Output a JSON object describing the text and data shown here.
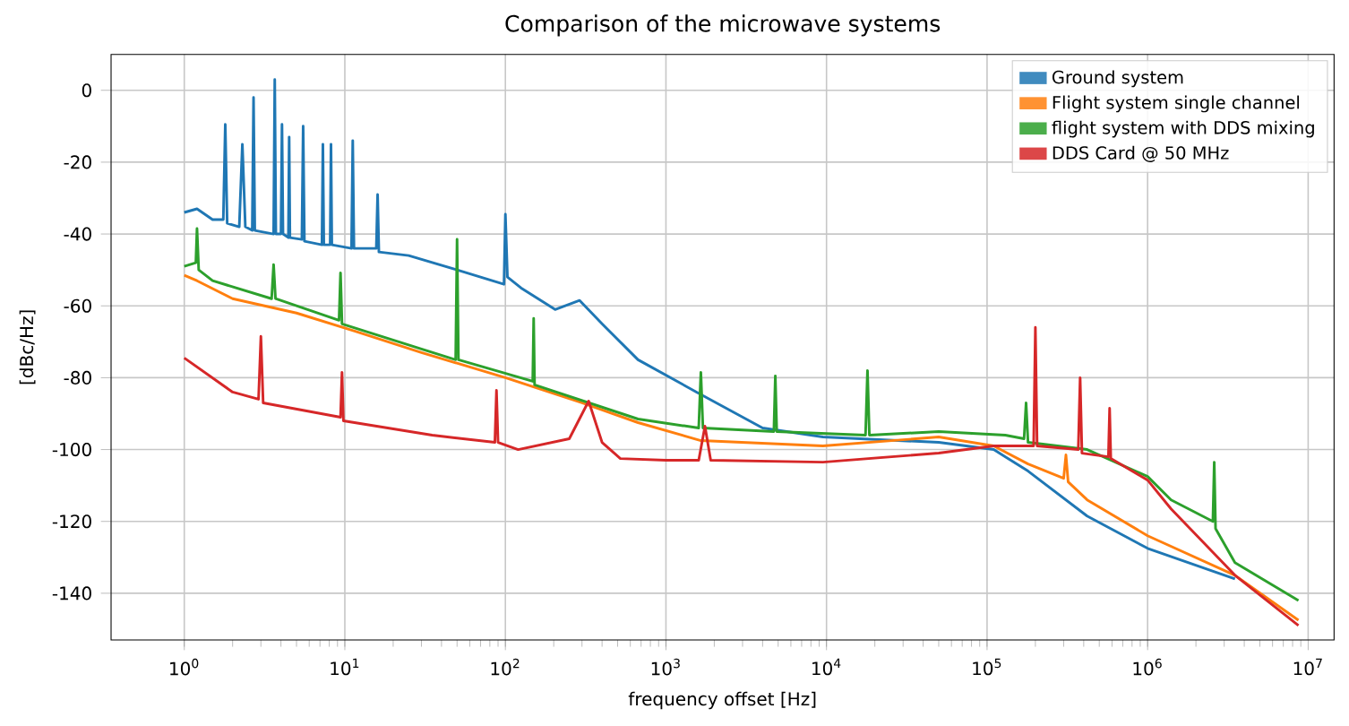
{
  "chart_data": {
    "type": "line",
    "title": "Comparison of the microwave systems",
    "xlabel": "frequency offset [Hz]",
    "ylabel": "[dBc/Hz]",
    "log": "x",
    "grid": true,
    "legend": "top right",
    "marker": "none",
    "line_style": "solid",
    "xlim": [
      0.35,
      14500000
    ],
    "ylim": [
      -153,
      10
    ],
    "xticks": [
      {
        "value": 1,
        "label": "10$^{0}$"
      },
      {
        "value": 10,
        "label": "10$^{1}$"
      },
      {
        "value": 100,
        "label": "10$^{2}$"
      },
      {
        "value": 1000,
        "label": "10$^{3}$"
      },
      {
        "value": 10000,
        "label": "10$^{4}$"
      },
      {
        "value": 100000,
        "label": "10$^{5}$"
      },
      {
        "value": 1000000,
        "label": "10$^{6}$"
      },
      {
        "value": 10000000,
        "label": "10$^{7}$"
      }
    ],
    "yticks": [
      -140,
      -120,
      -100,
      -80,
      -60,
      -40,
      -20,
      0
    ],
    "series": [
      {
        "name": "Ground system",
        "color": "#1f77b4",
        "x": [
          1,
          1.2,
          1.5,
          1.75,
          1.8,
          1.85,
          2.2,
          2.3,
          2.4,
          2.65,
          2.7,
          2.75,
          3.6,
          3.66,
          3.72,
          4.0,
          4.06,
          4.12,
          4.45,
          4.5,
          4.55,
          5.4,
          5.5,
          5.6,
          7.2,
          7.3,
          7.4,
          8.1,
          8.2,
          8.3,
          11,
          11.2,
          11.4,
          15.7,
          16,
          16.3,
          25,
          50,
          98,
          100,
          103,
          125,
          204,
          290,
          400,
          670,
          1550,
          4000,
          9500,
          50000,
          110000,
          180000,
          420000,
          1000000,
          3500000
        ],
        "values": [
          -34,
          -33,
          -36,
          -36,
          -9.5,
          -37,
          -38,
          -15,
          -38,
          -39,
          -2,
          -39,
          -40,
          3,
          -40,
          -40,
          -9.5,
          -40,
          -41,
          -13,
          -41,
          -41.5,
          -10,
          -42,
          -43,
          -15,
          -43,
          -43,
          -15,
          -43,
          -44,
          -14,
          -44,
          -44,
          -29,
          -45,
          -46,
          -50,
          -54,
          -34.5,
          -52,
          -55,
          -61,
          -58.5,
          -65,
          -75,
          -84,
          -94,
          -96.5,
          -98,
          -100,
          -106,
          -118.5,
          -127.5,
          -136
        ]
      },
      {
        "name": "Flight system single channel",
        "color": "#ff7f0e",
        "x": [
          1,
          1.2,
          2,
          5,
          11.5,
          30,
          100,
          300,
          670,
          1650,
          9500,
          50000,
          110000,
          180000,
          300000,
          310000,
          320000,
          420000,
          1000000,
          3500000,
          8700000
        ],
        "values": [
          -51.5,
          -53,
          -58,
          -62,
          -67,
          -73,
          -80,
          -87,
          -92.5,
          -97.5,
          -99,
          -96.5,
          -99,
          -104,
          -108,
          -101.5,
          -109,
          -114,
          -124,
          -135,
          -147.5
        ]
      },
      {
        "name": "flight system with DDS mixing",
        "color": "#2ca02c",
        "x": [
          1,
          1.18,
          1.2,
          1.23,
          1.5,
          3.5,
          3.6,
          3.7,
          9.2,
          9.4,
          9.6,
          30,
          49,
          50,
          51,
          148,
          150,
          152,
          670,
          1600,
          1650,
          1700,
          4700,
          4800,
          4900,
          17500,
          18000,
          18500,
          50000,
          130000,
          170000,
          175000,
          180000,
          420000,
          1000000,
          1400000,
          2550000,
          2600000,
          2650000,
          3500000,
          8700000
        ],
        "values": [
          -49,
          -48,
          -38.5,
          -50,
          -53,
          -58,
          -48.5,
          -58,
          -64,
          -50.8,
          -65,
          -72,
          -75,
          -41.5,
          -75,
          -81,
          -63.5,
          -82,
          -91.5,
          -94,
          -78.5,
          -94,
          -95,
          -79.5,
          -95,
          -96,
          -78,
          -96,
          -95,
          -96,
          -97,
          -87,
          -98,
          -100,
          -107.5,
          -114,
          -120,
          -103.5,
          -122,
          -131.5,
          -142
        ]
      },
      {
        "name": "DDS Card @ 50 MHz",
        "color": "#d62728",
        "x": [
          1,
          2,
          2.9,
          3,
          3.1,
          9.4,
          9.6,
          9.8,
          35,
          86,
          88,
          90,
          120,
          250,
          330,
          400,
          520,
          1000,
          1600,
          1750,
          1900,
          9500,
          50000,
          110000,
          195000,
          200000,
          205000,
          370000,
          380000,
          390000,
          570000,
          580000,
          590000,
          1000000,
          1400000,
          3500000,
          8700000
        ],
        "values": [
          -74.5,
          -84,
          -86,
          -68.5,
          -87,
          -91,
          -78.5,
          -92,
          -96,
          -98,
          -83.5,
          -98,
          -100,
          -97,
          -86.5,
          -98,
          -102.5,
          -103,
          -103,
          -93.5,
          -103,
          -103.5,
          -101,
          -99,
          -99,
          -66,
          -99,
          -100,
          -80,
          -101,
          -102,
          -88.5,
          -102.5,
          -108.5,
          -116.5,
          -135,
          -149
        ]
      }
    ]
  }
}
